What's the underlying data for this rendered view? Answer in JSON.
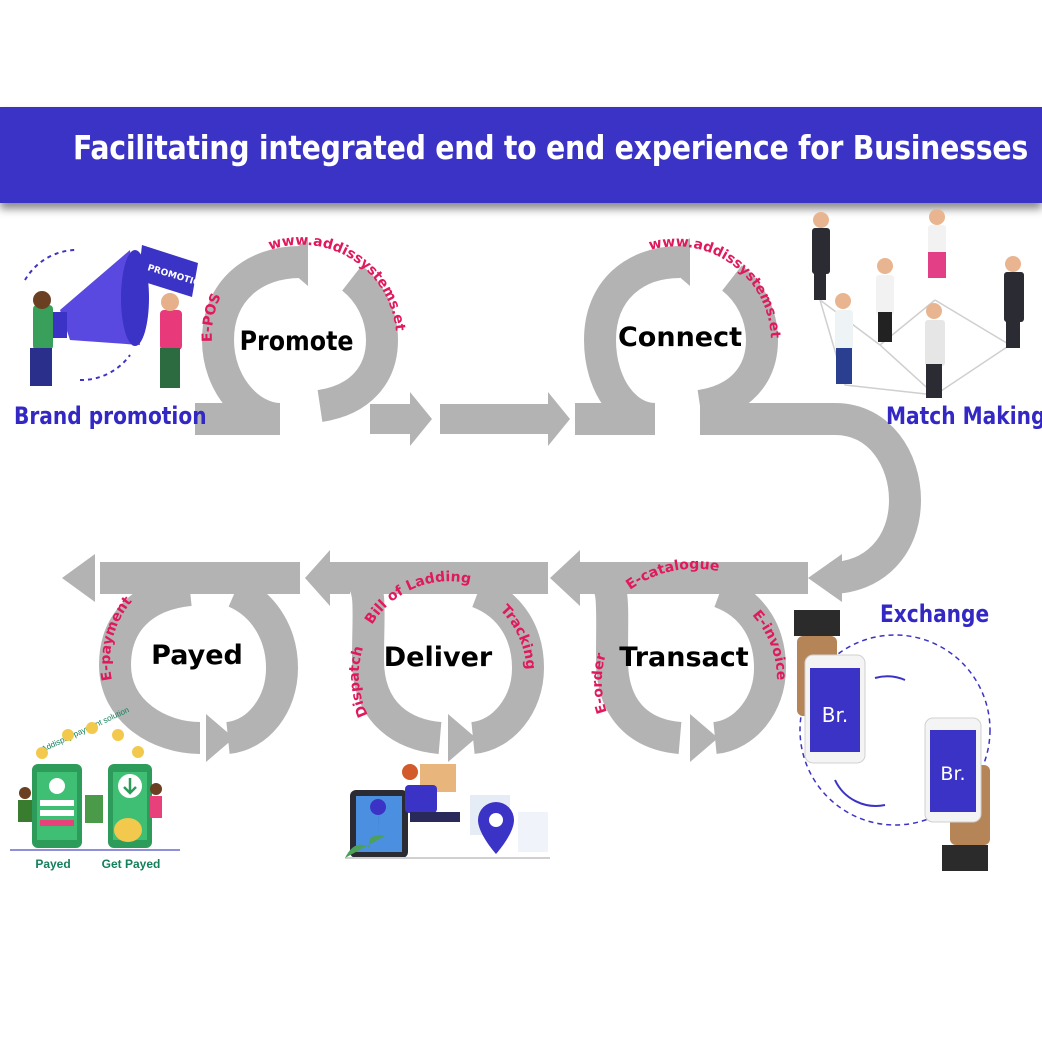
{
  "header": {
    "title": "Facilitating integrated end to end experience for Businesses"
  },
  "labels": {
    "brand_promotion": "Brand promotion",
    "match_making": "Match Making",
    "exchange": "Exchange"
  },
  "stages": {
    "promote": "Promote",
    "connect": "Connect",
    "transact": "Transact",
    "deliver": "Deliver",
    "payed": "Payed"
  },
  "ring_labels": {
    "promote_url": "www.addissystems.et",
    "promote_epos": "E-POS",
    "connect_url": "www.addissystems.et",
    "transact_catalogue": "E-catalogue",
    "transact_invoice": "E-invoice",
    "transact_order": "E-order",
    "deliver_bill": "Bill of Ladding",
    "deliver_tracking": "Tracking",
    "deliver_dispatch": "Dispatch",
    "payed_epayment": "E-payment"
  },
  "illustrations": {
    "promotion_sign": "PROMOTION",
    "phone_brand": "Br.",
    "pay_app_caption": "Addispay payment solution",
    "payed_caption": "Payed",
    "get_payed_caption": "Get Payed"
  },
  "colors": {
    "banner": "#3b32c6",
    "arrow": "#b3b3b3",
    "ring_text": "#e0195c",
    "label": "#3328c4"
  }
}
